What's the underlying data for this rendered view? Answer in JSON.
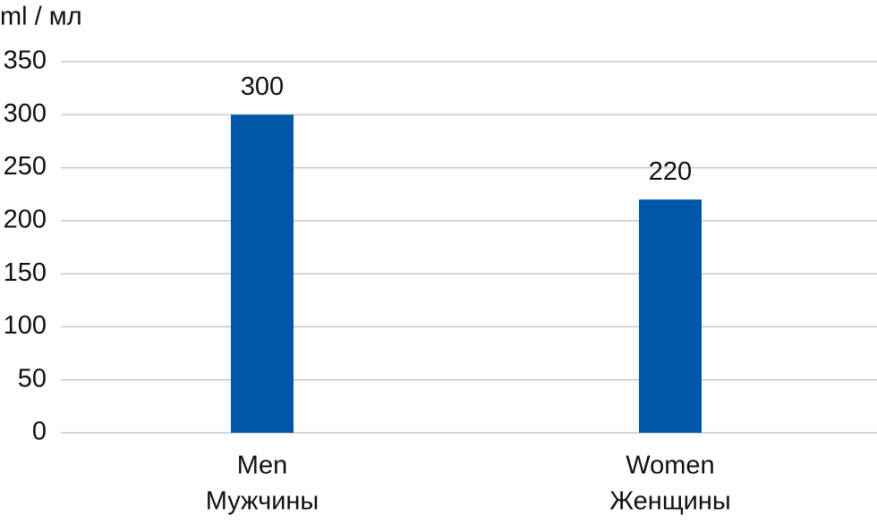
{
  "chart_data": {
    "type": "bar",
    "y_label": "ml / мл",
    "categories": [
      [
        "Men",
        "Мужчины"
      ],
      [
        "Women",
        "Женщины"
      ]
    ],
    "values": [
      300,
      220
    ],
    "color": "#0057a8",
    "ylim": [
      0,
      350
    ],
    "yticks": [
      0,
      50,
      100,
      150,
      200,
      250,
      300,
      350
    ],
    "grid": true
  }
}
